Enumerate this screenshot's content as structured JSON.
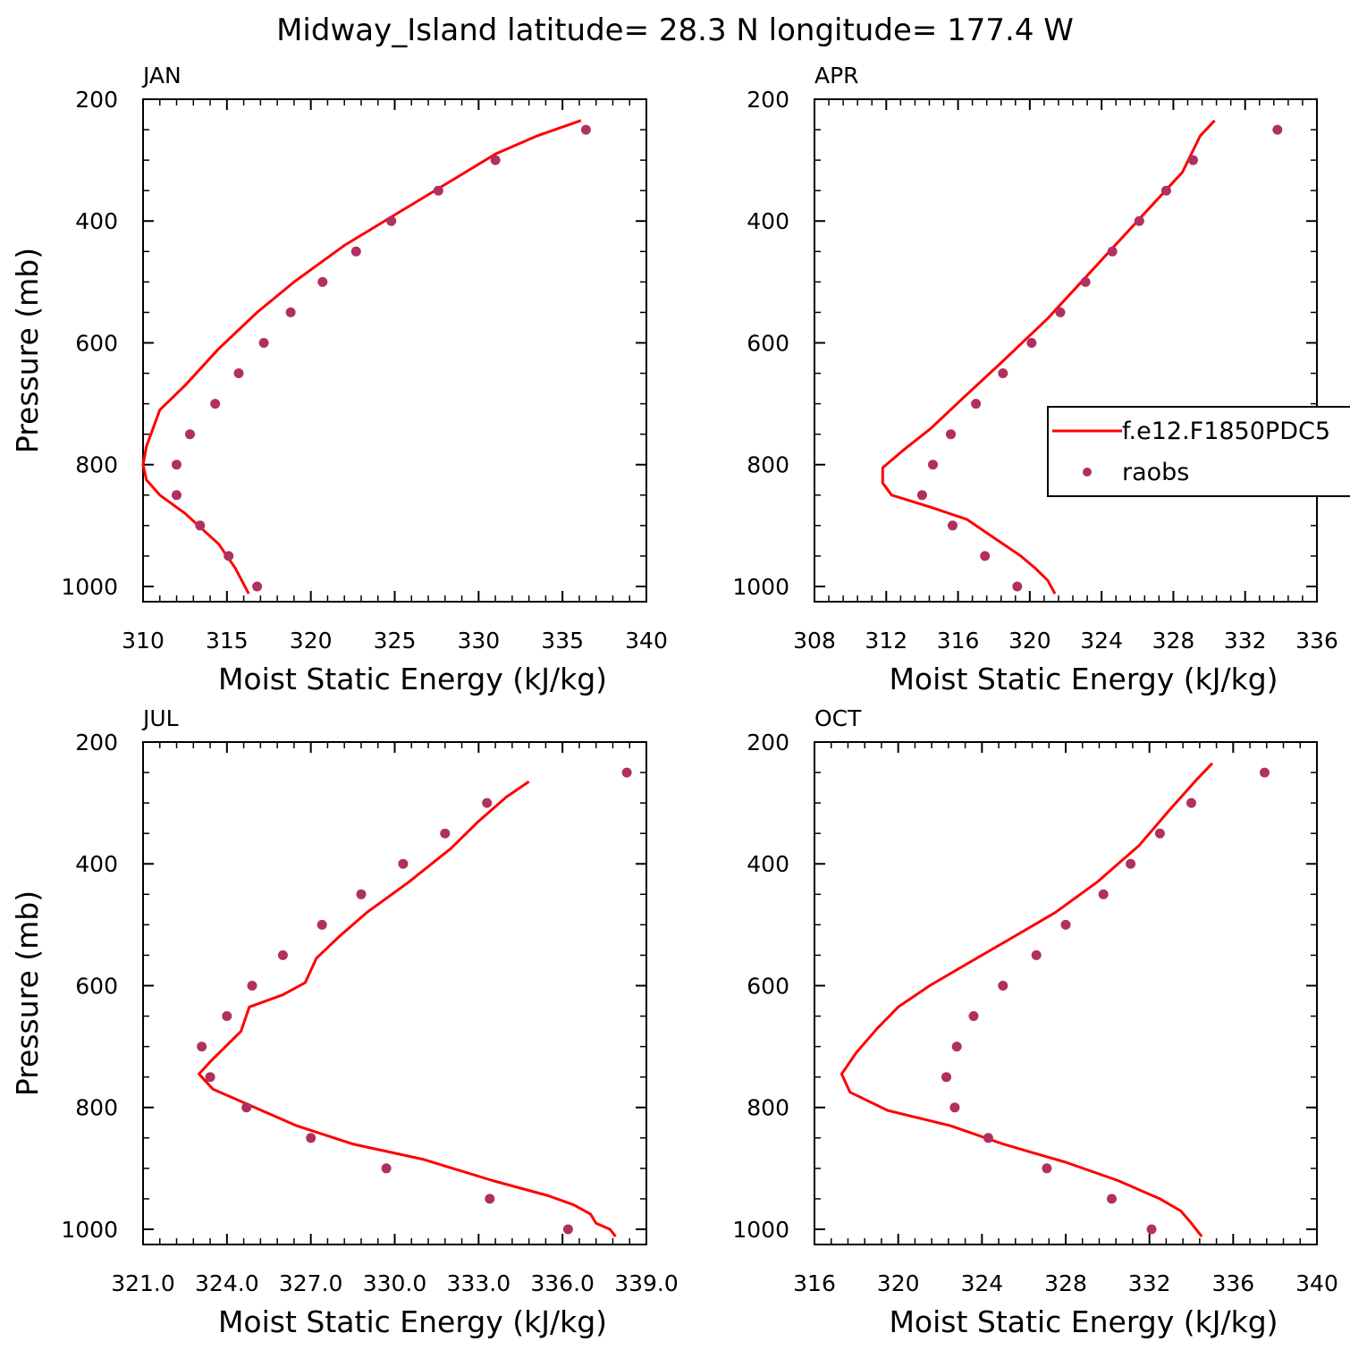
{
  "title": "Midway_Island  latitude= 28.3 N longitude= 177.4 W",
  "colors": {
    "model": "#ff0000",
    "obs": "#b03060",
    "axes": "#000000"
  },
  "legend": {
    "location": "APR panel, right side",
    "model_label": "f.e12.F1850PDC5",
    "obs_label": "raobs"
  },
  "chart_data": [
    {
      "type": "line",
      "title": "JAN",
      "xlabel": "Moist Static Energy (kJ/kg)",
      "ylabel": "Pressure (mb)",
      "xlim": [
        310,
        340
      ],
      "ylim": [
        1025,
        200
      ],
      "xticks": [
        "310",
        "315",
        "320",
        "325",
        "330",
        "335",
        "340"
      ],
      "yticks": [
        "200",
        "400",
        "600",
        "800",
        "1000"
      ],
      "series": [
        {
          "name": "f.e12.F1850PDC5",
          "kind": "line",
          "x": [
            316.3,
            315.5,
            314.5,
            312.5,
            311.0,
            310.2,
            310.0,
            310.2,
            311.0,
            312.5,
            314.5,
            316.8,
            319.0,
            322.0,
            325.0,
            328.0,
            331.0,
            333.5,
            336.1
          ],
          "y": [
            1012,
            970,
            930,
            880,
            850,
            825,
            800,
            770,
            710,
            670,
            610,
            550,
            500,
            440,
            390,
            340,
            290,
            260,
            235
          ]
        },
        {
          "name": "raobs",
          "kind": "scatter",
          "x": [
            316.8,
            315.1,
            313.4,
            312.0,
            312.0,
            312.8,
            314.3,
            315.7,
            317.2,
            318.8,
            320.7,
            322.7,
            324.8,
            327.6,
            331.0,
            336.4
          ],
          "y": [
            1000,
            950,
            900,
            850,
            800,
            750,
            700,
            650,
            600,
            550,
            500,
            450,
            400,
            350,
            300,
            250
          ]
        }
      ]
    },
    {
      "type": "line",
      "title": "APR",
      "xlabel": "Moist Static Energy (kJ/kg)",
      "ylabel": "",
      "xlim": [
        308,
        336
      ],
      "ylim": [
        1025,
        200
      ],
      "xticks": [
        "308",
        "312",
        "316",
        "320",
        "324",
        "328",
        "332",
        "336"
      ],
      "yticks": [
        "200",
        "400",
        "600",
        "800",
        "1000"
      ],
      "series": [
        {
          "name": "f.e12.F1850PDC5",
          "kind": "line",
          "x": [
            321.4,
            321.0,
            320.3,
            319.5,
            318.0,
            316.5,
            314.5,
            312.3,
            311.8,
            311.8,
            313.0,
            314.5,
            316.3,
            318.5,
            321.0,
            323.5,
            326.0,
            328.5,
            329.5,
            330.3
          ],
          "y": [
            1012,
            990,
            970,
            950,
            920,
            890,
            870,
            850,
            830,
            805,
            775,
            740,
            690,
            630,
            560,
            480,
            400,
            320,
            260,
            235
          ]
        },
        {
          "name": "raobs",
          "kind": "scatter",
          "x": [
            319.3,
            317.5,
            315.7,
            314.0,
            314.6,
            315.6,
            317.0,
            318.5,
            320.1,
            321.7,
            323.1,
            324.6,
            326.1,
            327.6,
            329.1,
            333.8
          ],
          "y": [
            1000,
            950,
            900,
            850,
            800,
            750,
            700,
            650,
            600,
            550,
            500,
            450,
            400,
            350,
            300,
            250
          ]
        }
      ]
    },
    {
      "type": "line",
      "title": "JUL",
      "xlabel": "Moist Static Energy (kJ/kg)",
      "ylabel": "Pressure (mb)",
      "xlim": [
        321,
        339
      ],
      "ylim": [
        1025,
        200
      ],
      "xticks": [
        "321.0",
        "324.0",
        "327.0",
        "330.0",
        "333.0",
        "336.0",
        "339.0"
      ],
      "yticks": [
        "200",
        "400",
        "600",
        "800",
        "1000"
      ],
      "series": [
        {
          "name": "f.e12.F1850PDC5",
          "kind": "line",
          "x": [
            337.9,
            337.7,
            337.2,
            337.0,
            336.4,
            335.5,
            333.5,
            331.0,
            328.5,
            326.5,
            325.0,
            323.5,
            323.0,
            323.4,
            324.5,
            324.8,
            326.0,
            326.8,
            327.2,
            328.0,
            329.0,
            330.5,
            332.0,
            333.0,
            334.0,
            334.8
          ],
          "y": [
            1012,
            1000,
            990,
            975,
            960,
            945,
            920,
            885,
            860,
            830,
            800,
            770,
            745,
            725,
            675,
            635,
            615,
            595,
            555,
            520,
            480,
            430,
            375,
            330,
            290,
            265
          ]
        },
        {
          "name": "raobs",
          "kind": "scatter",
          "x": [
            336.2,
            333.4,
            329.7,
            327.0,
            324.7,
            323.4,
            323.1,
            324.0,
            324.9,
            326.0,
            327.4,
            328.8,
            330.3,
            331.8,
            333.3,
            338.3
          ],
          "y": [
            1000,
            950,
            900,
            850,
            800,
            750,
            700,
            650,
            600,
            550,
            500,
            450,
            400,
            350,
            300,
            250
          ]
        }
      ]
    },
    {
      "type": "line",
      "title": "OCT",
      "xlabel": "Moist Static Energy (kJ/kg)",
      "ylabel": "",
      "xlim": [
        316,
        340
      ],
      "ylim": [
        1025,
        200
      ],
      "xticks": [
        "316",
        "320",
        "324",
        "328",
        "332",
        "336",
        "340"
      ],
      "yticks": [
        "200",
        "400",
        "600",
        "800",
        "1000"
      ],
      "series": [
        {
          "name": "f.e12.F1850PDC5",
          "kind": "line",
          "x": [
            334.5,
            334.0,
            333.5,
            332.5,
            330.5,
            328.0,
            325.0,
            322.5,
            319.5,
            317.7,
            317.3,
            318.0,
            319.0,
            320.0,
            321.5,
            323.5,
            325.5,
            327.5,
            329.5,
            331.5,
            333.0,
            334.3,
            335.0
          ],
          "y": [
            1012,
            990,
            970,
            950,
            920,
            890,
            860,
            830,
            805,
            775,
            745,
            710,
            670,
            635,
            600,
            560,
            520,
            480,
            430,
            370,
            310,
            260,
            235
          ]
        },
        {
          "name": "raobs",
          "kind": "scatter",
          "x": [
            332.1,
            330.2,
            327.1,
            324.3,
            322.7,
            322.3,
            322.8,
            323.6,
            325.0,
            326.6,
            328.0,
            329.8,
            331.1,
            332.5,
            334.0,
            337.5
          ],
          "y": [
            1000,
            950,
            900,
            850,
            800,
            750,
            700,
            650,
            600,
            550,
            500,
            450,
            400,
            350,
            300,
            250
          ]
        }
      ]
    }
  ]
}
